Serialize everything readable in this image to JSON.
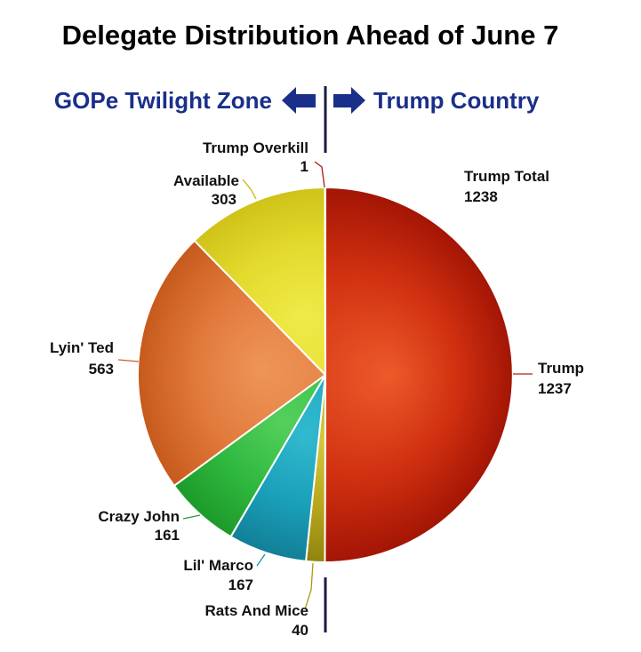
{
  "chart_data": {
    "type": "pie",
    "title": "Delegate Distribution Ahead of June 7",
    "left_zone_label": "GOPe Twilight Zone",
    "right_zone_label": "Trump Country",
    "zone_color": "#1a2f8a",
    "trump_total": {
      "label": "Trump Total",
      "value": 1238
    },
    "slices": [
      {
        "name": "Trump",
        "value": 1237,
        "color": "#d03010",
        "dark": "#a31505",
        "light": "#ec5a2a"
      },
      {
        "name": "Rats And Mice",
        "value": 40,
        "color": "#b6a61c",
        "dark": "#8f8410",
        "light": "#d4c63a"
      },
      {
        "name": "Lil' Marco",
        "value": 167,
        "color": "#1a9fb8",
        "dark": "#127f97",
        "light": "#30b9cf"
      },
      {
        "name": "Crazy John",
        "value": 161,
        "color": "#2fb83f",
        "dark": "#1d9a2a",
        "light": "#54cf5c"
      },
      {
        "name": "Lyin' Ted",
        "value": 563,
        "color": "#e0783a",
        "dark": "#c65a1c",
        "light": "#ee9558"
      },
      {
        "name": "Available",
        "value": 303,
        "color": "#e2da2c",
        "dark": "#cfc218",
        "light": "#f0ea48"
      },
      {
        "name": "Trump Overkill",
        "value": 1,
        "color": "#c0201c",
        "dark": "#9a1410",
        "light": "#d83a30"
      }
    ]
  }
}
